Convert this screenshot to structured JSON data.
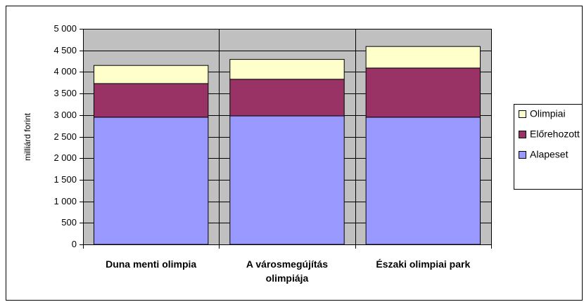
{
  "chart_data": {
    "type": "stacked_bar",
    "y_label": "milliárd forint",
    "categories": [
      "Duna menti olimpia",
      "A városmegújítás olimpiája",
      "Északi olimpiai park"
    ],
    "series": [
      {
        "name": "Alapeset",
        "color": "#9999ff",
        "values": [
          2950,
          2980,
          2950
        ]
      },
      {
        "name": "Előrehozott",
        "color": "#993366",
        "values": [
          780,
          850,
          1140
        ]
      },
      {
        "name": "Olimpiai",
        "color": "#ffffcc",
        "values": [
          420,
          460,
          500
        ]
      }
    ],
    "ylim": [
      0,
      5000
    ],
    "yticks": [
      0,
      500,
      {
        "value": 1000,
        "label": "1 000"
      },
      {
        "value": 1500,
        "label": "1 500"
      },
      {
        "value": 2000,
        "label": "2 000"
      },
      {
        "value": 2500,
        "label": "2 500"
      },
      {
        "value": 3000,
        "label": "3 000"
      },
      {
        "value": 3500,
        "label": "3 500"
      },
      {
        "value": 4000,
        "label": "4 000"
      },
      {
        "value": 4500,
        "label": "4 500"
      },
      {
        "value": 5000,
        "label": "5 000"
      }
    ],
    "grid": true,
    "plot_background": "#c0c0c0",
    "legend": "right"
  }
}
